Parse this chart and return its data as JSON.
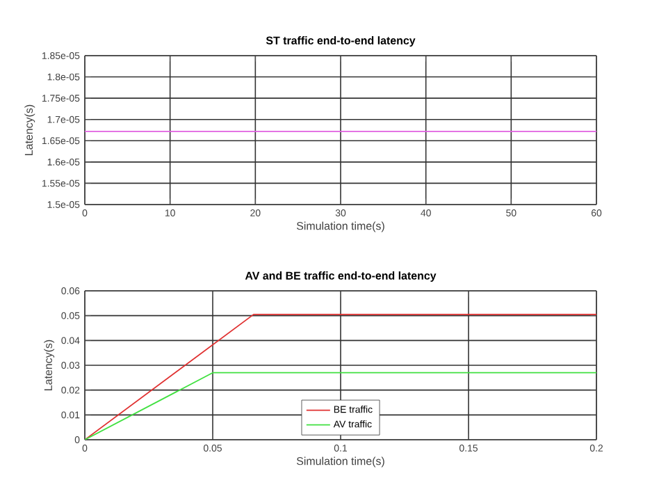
{
  "chart_data": [
    {
      "type": "line",
      "title": "ST traffic end-to-end latency",
      "xlabel": "Simulation time(s)",
      "ylabel": "Latency(s)",
      "grid": true,
      "xlim": [
        0,
        60
      ],
      "xticks": [
        0,
        10,
        20,
        30,
        40,
        50,
        60
      ],
      "ylim": [
        1.5e-05,
        1.85e-05
      ],
      "yticks": [
        {
          "value": 1.5e-05,
          "label": "1.5e-05"
        },
        {
          "value": 1.55e-05,
          "label": "1.55e-05"
        },
        {
          "value": 1.6e-05,
          "label": "1.6e-05"
        },
        {
          "value": 1.65e-05,
          "label": "1.65e-05"
        },
        {
          "value": 1.7e-05,
          "label": "1.7e-05"
        },
        {
          "value": 1.75e-05,
          "label": "1.75e-05"
        },
        {
          "value": 1.8e-05,
          "label": "1.8e-05"
        },
        {
          "value": 1.85e-05,
          "label": "1.85e-05"
        }
      ],
      "series": [
        {
          "color": "#e060e0",
          "x": [
            0,
            60
          ],
          "values": [
            1.672e-05,
            1.672e-05
          ]
        }
      ]
    },
    {
      "type": "line",
      "title": "AV and BE traffic end-to-end latency",
      "xlabel": "Simulation time(s)",
      "ylabel": "Latency(s)",
      "grid": true,
      "legend": "bottom",
      "xlim": [
        0,
        0.2
      ],
      "xticks": [
        0,
        0.05,
        0.1,
        0.15,
        0.2
      ],
      "ylim": [
        0,
        0.06
      ],
      "yticks": [
        0,
        0.01,
        0.02,
        0.03,
        0.04,
        0.05,
        0.06
      ],
      "series": [
        {
          "name": "BE traffic",
          "color": "#e03030",
          "x": [
            0,
            0.066,
            0.2
          ],
          "values": [
            0,
            0.0505,
            0.0505
          ]
        },
        {
          "name": "AV traffic",
          "color": "#40e040",
          "x": [
            0,
            0.05,
            0.2
          ],
          "values": [
            0,
            0.027,
            0.027
          ]
        }
      ]
    }
  ]
}
